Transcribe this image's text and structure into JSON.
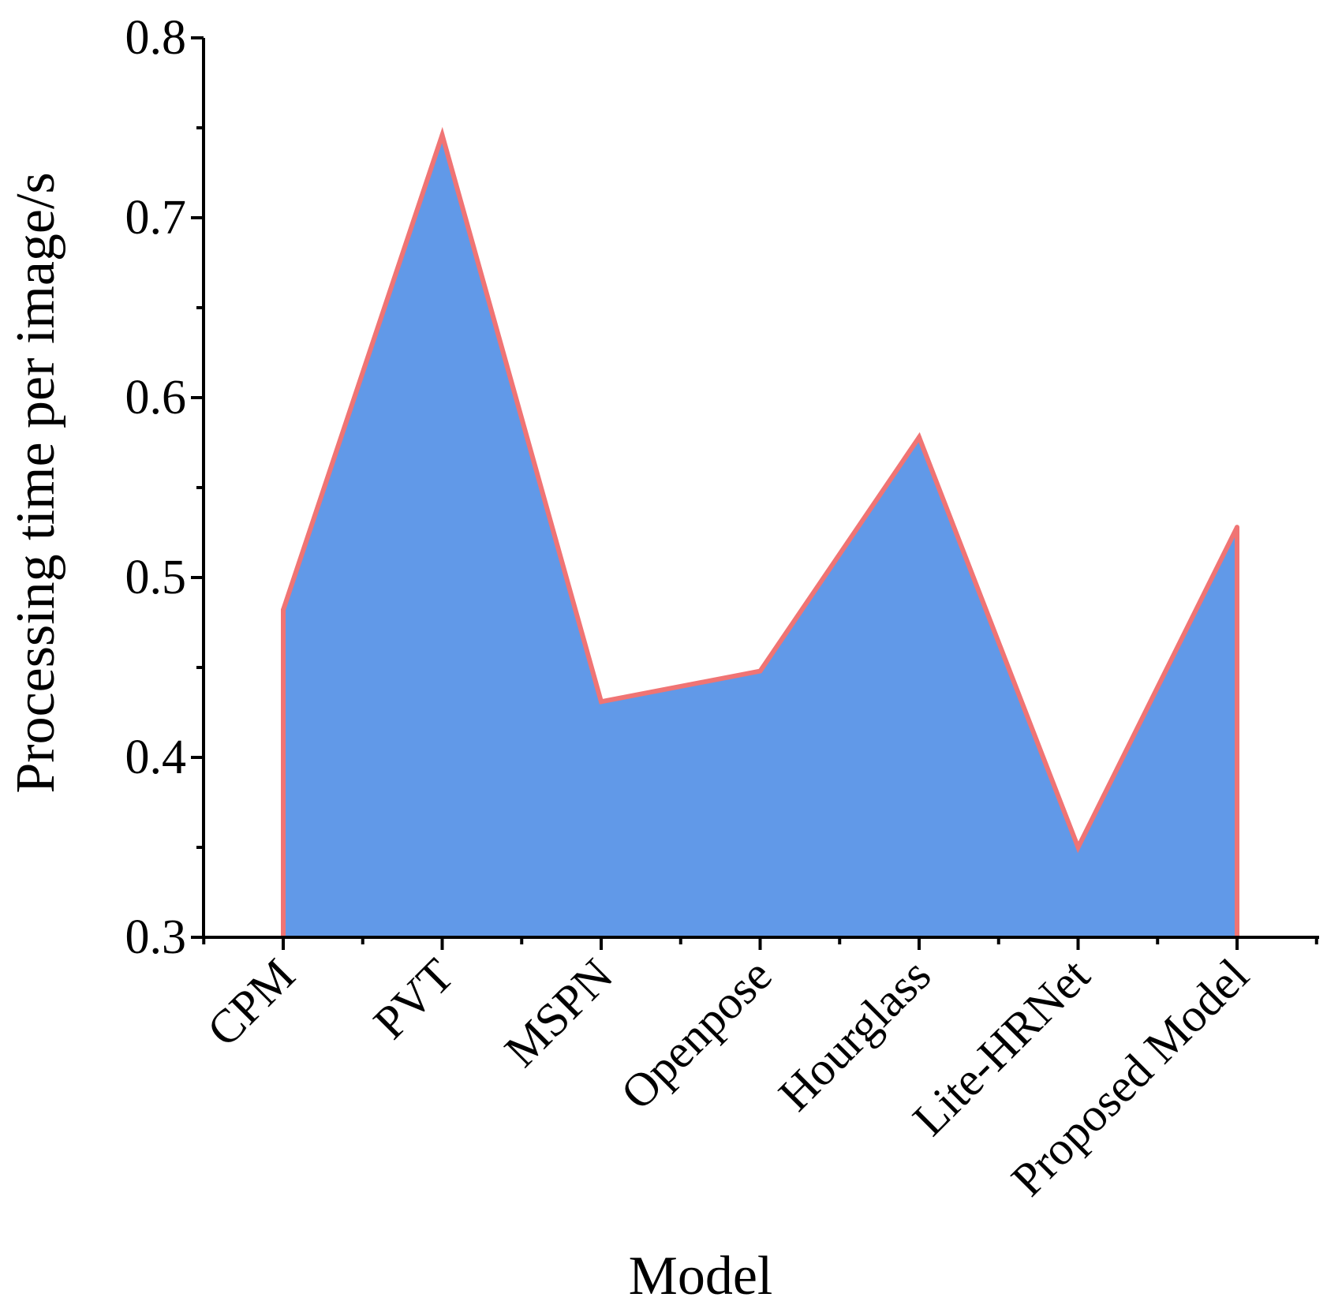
{
  "chart_data": {
    "type": "area",
    "categories": [
      "CPM",
      "PVT",
      "MSPN",
      "Openpose",
      "Hourglass",
      "Lite-HRNet",
      "Proposed Model"
    ],
    "series": [
      {
        "values": [
          0.482,
          0.746,
          0.431,
          0.448,
          0.578,
          0.35,
          0.528
        ]
      }
    ],
    "xlabel": "Model",
    "ylabel": "Processing time per image/s",
    "ylim": [
      0.3,
      0.8
    ],
    "yticks": [
      "0.3",
      "0.4",
      "0.5",
      "0.6",
      "0.7",
      "0.8"
    ],
    "grid": false,
    "legend": "none",
    "fill_color": "#6199e8",
    "line_color": "#f07474"
  }
}
